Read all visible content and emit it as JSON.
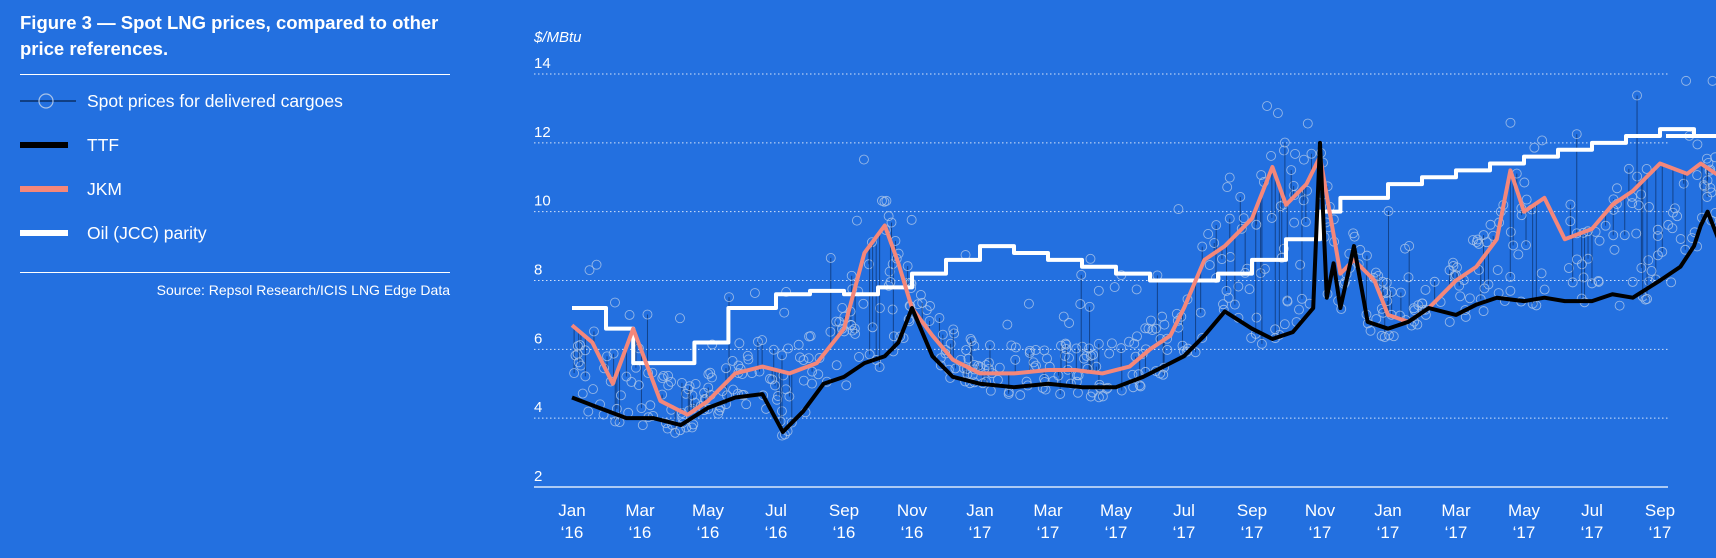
{
  "figure": {
    "title": "Figure 3 — Spot LNG prices, compared to other price references.",
    "source": "Source: Repsol Research/ICIS LNG Edge Data"
  },
  "colors": {
    "background": "#2370e0",
    "spot": "#a9c3e8",
    "ttf": "#000000",
    "jkm": "#f4877a",
    "oil_parity": "#ffffff"
  },
  "legend": [
    {
      "key": "spot",
      "label": "Spot prices for delivered cargoes",
      "icon": "circle-marker-line"
    },
    {
      "key": "ttf",
      "label": "TTF",
      "icon": "black-line"
    },
    {
      "key": "jkm",
      "label": "JKM",
      "icon": "salmon-line"
    },
    {
      "key": "oil",
      "label": "Oil (JCC) parity",
      "icon": "white-line"
    }
  ],
  "chart_data": {
    "type": "line",
    "title": "Figure 3 — Spot LNG prices, compared to other price references.",
    "ylabel": "$/MBtu",
    "ylim": [
      2,
      14
    ],
    "yticks": [
      2,
      4,
      6,
      8,
      10,
      12,
      14
    ],
    "x_range": [
      "2016-01",
      "2017-09"
    ],
    "xticks": [
      {
        "m": "Jan",
        "y": "‘16"
      },
      {
        "m": "Mar",
        "y": "‘16"
      },
      {
        "m": "May",
        "y": "‘16"
      },
      {
        "m": "Jul",
        "y": "‘16"
      },
      {
        "m": "Sep",
        "y": "‘16"
      },
      {
        "m": "Nov",
        "y": "‘16"
      },
      {
        "m": "Jan",
        "y": "‘17"
      },
      {
        "m": "Mar",
        "y": "‘17"
      },
      {
        "m": "May",
        "y": "‘17"
      },
      {
        "m": "Jul",
        "y": "‘17"
      },
      {
        "m": "Sep",
        "y": "‘17"
      },
      {
        "m": "Nov",
        "y": "‘17"
      },
      {
        "m": "Jan",
        "y": "‘17"
      },
      {
        "m": "Mar",
        "y": "‘17"
      },
      {
        "m": "May",
        "y": "‘17"
      },
      {
        "m": "Jul",
        "y": "‘17"
      },
      {
        "m": "Sep",
        "y": "‘17"
      }
    ],
    "grid": "horizontal dotted",
    "series": [
      {
        "name": "Oil (JCC) parity",
        "key": "oil",
        "style": "step",
        "x": [
          0,
          0.5,
          0.9,
          1.3,
          1.8,
          2.3,
          3.0,
          3.5,
          4.0,
          4.5,
          5.0,
          5.5,
          6.0,
          6.5,
          7.0,
          7.5,
          8.0,
          8.5,
          9.0,
          9.5,
          10.0,
          10.5,
          11.0,
          11.3,
          12.0,
          12.5,
          13.0,
          13.5,
          14.0,
          14.5,
          15.0,
          15.5,
          16.0,
          16.5,
          16.9
        ],
        "y": [
          7.2,
          6.6,
          5.6,
          5.6,
          6.2,
          7.2,
          7.6,
          7.7,
          7.6,
          7.8,
          8.2,
          8.6,
          9.0,
          8.8,
          8.6,
          8.4,
          8.2,
          8.0,
          8.0,
          8.2,
          8.6,
          9.2,
          10.0,
          10.4,
          10.8,
          11.0,
          11.2,
          11.4,
          11.6,
          11.8,
          12.0,
          12.2,
          12.4,
          12.2,
          12.2
        ]
      },
      {
        "name": "JKM",
        "key": "jkm",
        "style": "line",
        "x": [
          0,
          0.3,
          0.6,
          0.9,
          1.3,
          1.7,
          2.0,
          2.4,
          2.8,
          3.2,
          3.6,
          4.0,
          4.3,
          4.6,
          4.8,
          5.0,
          5.3,
          5.6,
          6.0,
          6.5,
          7.0,
          7.4,
          7.8,
          8.2,
          8.5,
          8.8,
          9.0,
          9.3,
          9.6,
          10.0,
          10.3,
          10.5,
          10.8,
          11.0,
          11.3,
          11.5,
          11.8,
          12.0,
          12.3,
          12.6,
          13.0,
          13.3,
          13.6,
          13.8,
          14.0,
          14.3,
          14.6,
          15.0,
          15.3,
          15.6,
          16.0,
          16.4,
          16.6,
          16.9
        ],
        "y": [
          6.7,
          6.2,
          5.0,
          6.6,
          4.5,
          4.1,
          4.5,
          5.3,
          5.5,
          5.3,
          5.6,
          6.6,
          8.8,
          9.6,
          8.5,
          7.2,
          6.4,
          5.7,
          5.3,
          5.3,
          5.4,
          5.4,
          5.3,
          5.5,
          6.0,
          6.4,
          7.2,
          8.6,
          9.0,
          9.8,
          11.3,
          10.2,
          10.8,
          11.6,
          8.2,
          8.6,
          8.0,
          7.0,
          6.8,
          7.2,
          8.0,
          8.4,
          9.2,
          11.2,
          10.0,
          10.4,
          9.2,
          9.5,
          10.2,
          10.6,
          11.4,
          11.1,
          11.4,
          11.0
        ]
      },
      {
        "name": "TTF",
        "key": "ttf",
        "style": "line",
        "x": [
          0,
          0.4,
          0.8,
          1.2,
          1.6,
          2.0,
          2.4,
          2.8,
          3.1,
          3.4,
          3.7,
          4.0,
          4.3,
          4.6,
          4.8,
          5.0,
          5.3,
          5.6,
          6.0,
          6.5,
          7.0,
          7.5,
          8.0,
          8.4,
          8.8,
          9.0,
          9.3,
          9.6,
          10.0,
          10.3,
          10.6,
          10.9,
          11.0,
          11.1,
          11.2,
          11.3,
          11.5,
          11.7,
          12.0,
          12.3,
          12.6,
          13.0,
          13.3,
          13.6,
          14.0,
          14.3,
          14.6,
          15.0,
          15.3,
          15.6,
          16.0,
          16.3,
          16.5,
          16.6,
          16.7,
          16.9
        ],
        "y": [
          4.6,
          4.3,
          4.0,
          4.0,
          3.8,
          4.3,
          4.6,
          4.7,
          3.6,
          4.2,
          5.0,
          5.2,
          5.6,
          5.8,
          6.2,
          7.2,
          5.8,
          5.2,
          5.0,
          4.9,
          5.0,
          4.9,
          4.9,
          5.2,
          5.6,
          5.8,
          6.4,
          7.1,
          6.6,
          6.3,
          6.5,
          7.2,
          12.0,
          7.5,
          8.5,
          7.2,
          9.0,
          6.8,
          6.6,
          6.8,
          7.2,
          7.0,
          7.3,
          7.5,
          7.4,
          7.5,
          7.4,
          7.4,
          7.6,
          7.5,
          8.0,
          8.4,
          9.0,
          9.6,
          10.0,
          9.0
        ]
      }
    ]
  }
}
